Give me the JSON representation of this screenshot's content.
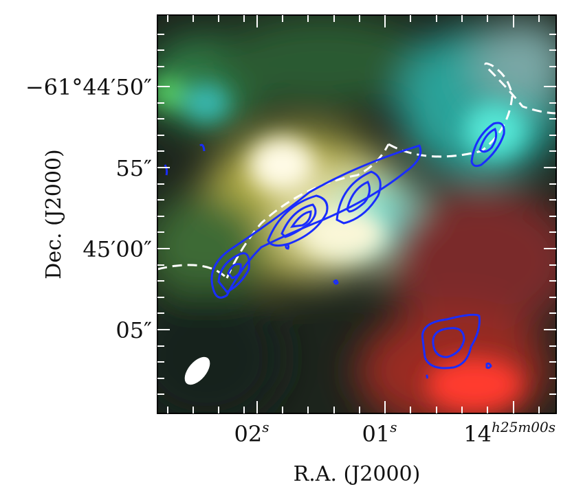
{
  "figure": {
    "axes": {
      "ylabel": "Dec. (J2000)",
      "xlabel": "R.A. (J2000)",
      "y_ticks": [
        {
          "label": "−61°44′50″"
        },
        {
          "label": "55″"
        },
        {
          "label": "45′00″"
        },
        {
          "label": "05″"
        }
      ],
      "x_ticks": [
        {
          "label": "02",
          "suffix": "s"
        },
        {
          "label": "01",
          "suffix": "s"
        },
        {
          "label": "14",
          "suffix": "h25m00s"
        }
      ]
    },
    "image": {
      "description_colors": {
        "green": "#3f8a3a",
        "yellow": "#f4ef9a",
        "cyan": "#3fd6c6",
        "red": "#e33a2e",
        "dark": "#1e2a1e"
      },
      "contour_color": "#1a2dff",
      "arc_color": "#ffffff",
      "beam_color": "#ffffff"
    }
  }
}
